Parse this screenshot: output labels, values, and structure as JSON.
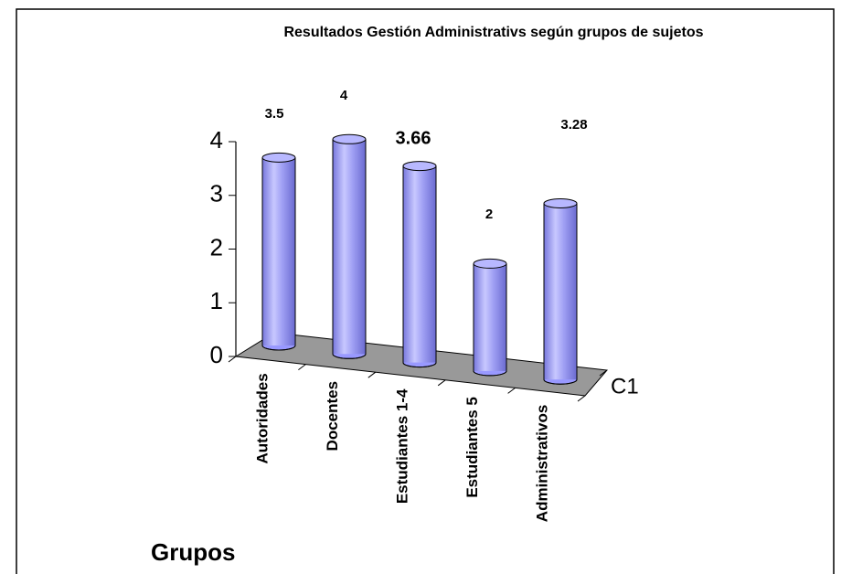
{
  "chart_data": {
    "type": "bar",
    "title": "Resultados  Gestión Administrativs según grupos de sujetos",
    "categories": [
      "Autoridades",
      "Docentes",
      "Estudiantes 1-4",
      "Estudiantes 5",
      "Administrativos"
    ],
    "series": [
      {
        "name": "C1",
        "color": "#9999ff",
        "values": [
          3.5,
          4,
          3.66,
          2,
          3.28
        ]
      }
    ],
    "x_label": "Grupos",
    "ylim": [
      0,
      4
    ],
    "yticks": [
      0,
      1,
      2,
      3,
      4
    ]
  }
}
